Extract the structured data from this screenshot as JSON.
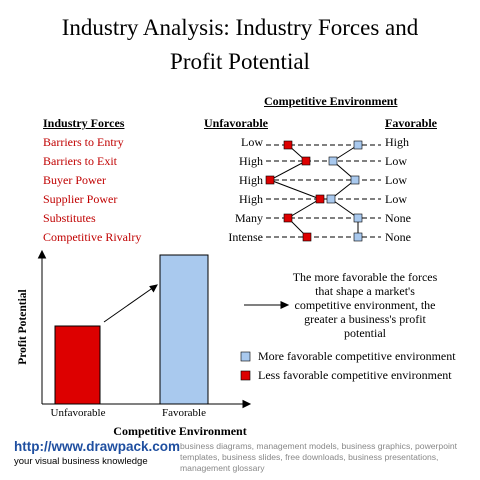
{
  "title": {
    "line1": "Industry Analysis: Industry Forces and",
    "line2": "Profit Potential"
  },
  "competitive_env_header": "Competitive Environment",
  "columns": {
    "forces": "Industry Forces",
    "unfavorable": "Unfavorable",
    "favorable": "Favorable"
  },
  "forces": [
    {
      "name": "Barriers to Entry",
      "unfavorable": "Low",
      "favorable": "High"
    },
    {
      "name": "Barriers to Exit",
      "unfavorable": "High",
      "favorable": "Low"
    },
    {
      "name": "Buyer Power",
      "unfavorable": "High",
      "favorable": "Low"
    },
    {
      "name": "Supplier Power",
      "unfavorable": "High",
      "favorable": "Low"
    },
    {
      "name": "Substitutes",
      "unfavorable": "Many",
      "favorable": "None"
    },
    {
      "name": "Competitive Rivalry",
      "unfavorable": "Intense",
      "favorable": "None"
    }
  ],
  "chart": {
    "y_axis_label": "Profit Potential",
    "x_axis_label": "Competitive Environment",
    "categories": [
      "Unfavorable",
      "Favorable"
    ]
  },
  "description": "The more favorable the forces that shape a market's competitive environment, the greater a business's profit potential",
  "legend": {
    "more": "More favorable competitive environment",
    "less": "Less favorable competitive environment"
  },
  "colors": {
    "red": "#dd0000",
    "blue": "#a9c9ee",
    "force_text": "#c00000",
    "url": "#1f4fa0"
  },
  "footer": {
    "url": "http://www.drawpack.com",
    "tagline": "your visual business knowledge",
    "keywords": "business diagrams, management models, business graphics, powerpoint templates, business slides, free downloads, business presentations, management glossary"
  }
}
